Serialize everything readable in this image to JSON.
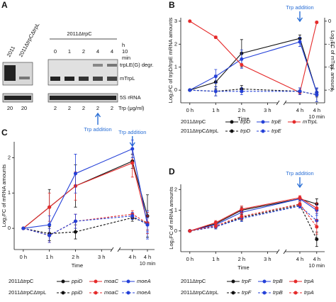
{
  "panel_labels": [
    "A",
    "B",
    "C",
    "D"
  ],
  "panel_a": {
    "lanes_left": [
      "2011",
      "2011ΔtrpCΔtrpL"
    ],
    "strain_right": "2011ΔtrpC",
    "times": [
      "0",
      "1",
      "2",
      "4",
      "4"
    ],
    "time_unit": "h",
    "time_extra": "10",
    "time_extra_unit": "min",
    "bands": [
      "trpLE(G) degr.",
      "mTrpL",
      "5S rRNA"
    ],
    "trp_left": [
      "20",
      "20"
    ],
    "trp_right": [
      "2",
      "2",
      "2",
      "2",
      "2"
    ],
    "trp_unit": "Trp  (μg/ml)",
    "annotation": "Trp addition"
  },
  "chart_data": [
    {
      "type": "line",
      "xlabel": "Time",
      "ylabel": "Log₂FC of trpD/trpE mRNA amounts",
      "y2label": "Log₂FC of mTrpL amount",
      "x": [
        0,
        1,
        2,
        4,
        4.17
      ],
      "xlim": [
        -0.35,
        4.25
      ],
      "xbreak": [
        3.4,
        3.85
      ],
      "xticks": [
        {
          "value": 0,
          "label": "0 h"
        },
        {
          "value": 1,
          "label": "1 h"
        },
        {
          "value": 2,
          "label": "2 h"
        },
        {
          "value": 3,
          "label": "3 h"
        },
        {
          "value": 4,
          "label": "4 h"
        },
        {
          "value": 4.17,
          "label": [
            "4 h",
            "10 min"
          ]
        }
      ],
      "ylim": [
        -0.55,
        3.15
      ],
      "yticks": [
        0,
        1,
        2,
        3
      ],
      "y2lim": [
        -3.55,
        0.15
      ],
      "y2ticks": [
        0,
        -1,
        -2,
        -3
      ],
      "annotations": [
        {
          "text": "Trp addition",
          "x": 4
        }
      ],
      "series": [
        {
          "name": "trpD",
          "strain": "2011ΔtrpC",
          "color": "#111111",
          "dash": false,
          "values": [
            0,
            0.35,
            1.6,
            2.25,
            -0.1
          ],
          "errors": [
            0,
            0.3,
            0.6,
            0.15,
            0.2
          ]
        },
        {
          "name": "trpE",
          "strain": "2011ΔtrpC",
          "color": "#2440d8",
          "dash": false,
          "values": [
            0,
            0.6,
            1.35,
            2.1,
            -0.1
          ],
          "errors": [
            0,
            0.3,
            0.4,
            0.2,
            0.15
          ]
        },
        {
          "name": "mTrpL",
          "strain": "2011ΔtrpC",
          "color": "#e52a2a",
          "dash": false,
          "axis": "y2",
          "values": [
            0,
            -0.7,
            -1.9,
            -3.1,
            -0.05
          ],
          "errors": [
            0,
            0.05,
            0.05,
            0.1,
            0.05
          ]
        },
        {
          "name": "trpD",
          "strain": "2011ΔtrpCΔtrpL",
          "color": "#111111",
          "dash": true,
          "values": [
            0,
            -0.05,
            0.05,
            -0.05,
            -0.2
          ],
          "errors": [
            0,
            0.2,
            0.15,
            0.15,
            0.3
          ]
        },
        {
          "name": "trpE",
          "strain": "2011ΔtrpCΔtrpL",
          "color": "#2440d8",
          "dash": true,
          "values": [
            0,
            -0.05,
            -0.05,
            -0.05,
            -0.2
          ],
          "errors": [
            0,
            0.2,
            0.15,
            0.15,
            0.3
          ]
        }
      ]
    },
    {
      "type": "line",
      "xlabel": "Time",
      "ylabel": "Log₂FC of mRNA amounts",
      "x": [
        0,
        1,
        2,
        4,
        4.17
      ],
      "xlim": [
        -0.35,
        4.25
      ],
      "xbreak": [
        3.4,
        3.85
      ],
      "xticks": [
        {
          "value": 0,
          "label": "0 h"
        },
        {
          "value": 1,
          "label": "1 h"
        },
        {
          "value": 2,
          "label": "2 h"
        },
        {
          "value": 3,
          "label": "3 h"
        },
        {
          "value": 4,
          "label": "4 h"
        },
        {
          "value": 4.17,
          "label": [
            "4 h",
            "10 min"
          ]
        }
      ],
      "ylim": [
        -0.6,
        2.45
      ],
      "yticks": [
        0,
        1,
        2
      ],
      "annotations": [
        {
          "text": "Trp addition",
          "x": 4
        }
      ],
      "series": [
        {
          "name": "ppiD",
          "strain": "2011ΔtrpC",
          "color": "#111111",
          "dash": false,
          "values": [
            0,
            0.6,
            1.2,
            1.9,
            0.35
          ],
          "errors": [
            0,
            0.5,
            0.6,
            0.2,
            0.6
          ]
        },
        {
          "name": "moaC",
          "strain": "2011ΔtrpC",
          "color": "#e52a2a",
          "dash": false,
          "values": [
            0,
            0.6,
            1.2,
            1.85,
            0.15
          ],
          "errors": [
            0,
            0.4,
            0.4,
            0.4,
            0.3
          ]
        },
        {
          "name": "moeA",
          "strain": "2011ΔtrpC",
          "color": "#2440d8",
          "dash": false,
          "values": [
            0,
            0.1,
            1.55,
            2.25,
            0.1
          ],
          "errors": [
            0,
            0.25,
            0.55,
            0.25,
            0.4
          ]
        },
        {
          "name": "ppiD",
          "strain": "2011ΔtrpCΔtrpL",
          "color": "#111111",
          "dash": true,
          "values": [
            0,
            -0.15,
            -0.1,
            0.3,
            0.15
          ],
          "errors": [
            0,
            0.2,
            0.2,
            0.1,
            0.2
          ]
        },
        {
          "name": "moaC",
          "strain": "2011ΔtrpCΔtrpL",
          "color": "#e52a2a",
          "dash": true,
          "values": [
            0,
            -0.2,
            0.2,
            0.4,
            0.15
          ],
          "errors": [
            0,
            0.2,
            0.2,
            0.1,
            0.2
          ]
        },
        {
          "name": "moeA",
          "strain": "2011ΔtrpCΔtrpL",
          "color": "#2440d8",
          "dash": true,
          "values": [
            0,
            -0.2,
            0.2,
            0.35,
            0.1
          ],
          "errors": [
            0,
            0.2,
            0.2,
            0.1,
            0.2
          ]
        }
      ]
    },
    {
      "type": "line",
      "xlabel": "Time",
      "ylabel": "Log₂FC of mRNA amounts",
      "x": [
        0,
        1,
        2,
        4,
        4.17
      ],
      "xlim": [
        -0.35,
        4.25
      ],
      "xbreak": [
        3.4,
        3.85
      ],
      "xticks": [
        {
          "value": 0,
          "label": "0 h"
        },
        {
          "value": 1,
          "label": "1 h"
        },
        {
          "value": 2,
          "label": "2 h"
        },
        {
          "value": 3,
          "label": "3 h"
        },
        {
          "value": 4,
          "label": "4 h"
        },
        {
          "value": 4.17,
          "label": [
            "4 h",
            "10 min"
          ]
        }
      ],
      "ylim": [
        -1.0,
        2.25
      ],
      "yticks": [
        0,
        1,
        2
      ],
      "annotations": [
        {
          "text": "Trp addition",
          "x": 4
        }
      ],
      "series": [
        {
          "name": "trpF",
          "strain": "2011ΔtrpC",
          "color": "#111111",
          "dash": false,
          "values": [
            0,
            0.35,
            1.0,
            1.55,
            1.3
          ],
          "errors": [
            0,
            0.1,
            0.15,
            0.1,
            0.25
          ]
        },
        {
          "name": "trpB",
          "strain": "2011ΔtrpC",
          "color": "#2440d8",
          "dash": false,
          "values": [
            0,
            0.3,
            0.9,
            1.55,
            1.0
          ],
          "errors": [
            0,
            0.1,
            0.15,
            0.1,
            0.25
          ]
        },
        {
          "name": "trpA",
          "strain": "2011ΔtrpC",
          "color": "#e52a2a",
          "dash": false,
          "values": [
            0,
            0.4,
            1.05,
            1.6,
            1.1
          ],
          "errors": [
            0,
            0.1,
            0.15,
            0.1,
            0.25
          ]
        },
        {
          "name": "trpF",
          "strain": "2011ΔtrpCΔtrpL",
          "color": "#111111",
          "dash": true,
          "values": [
            0,
            0.2,
            0.65,
            1.25,
            -0.4
          ],
          "errors": [
            0,
            0.1,
            0.15,
            0.1,
            0.35
          ]
        },
        {
          "name": "trpB",
          "strain": "2011ΔtrpCΔtrpL",
          "color": "#2440d8",
          "dash": true,
          "values": [
            0,
            0.2,
            0.6,
            1.2,
            0.5
          ],
          "errors": [
            0,
            0.1,
            0.15,
            0.1,
            0.35
          ]
        },
        {
          "name": "trpA",
          "strain": "2011ΔtrpCΔtrpL",
          "color": "#e52a2a",
          "dash": true,
          "values": [
            0,
            0.25,
            0.7,
            1.3,
            0.2
          ],
          "errors": [
            0,
            0.1,
            0.15,
            0.1,
            0.35
          ]
        }
      ]
    }
  ]
}
